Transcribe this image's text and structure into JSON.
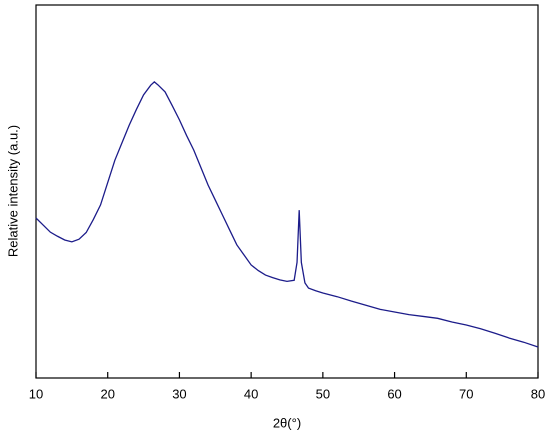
{
  "chart_data": {
    "type": "line",
    "x_label": "2θ(°)",
    "y_label": "Relative intensity (a.u.)",
    "color": "#1c1c8a",
    "x": [
      10,
      11,
      12,
      13,
      14,
      15,
      16,
      17,
      18,
      19,
      20,
      21,
      22,
      23,
      24,
      25,
      26,
      26.5,
      27,
      28,
      29,
      30,
      31,
      32,
      33,
      34,
      35,
      36,
      37,
      38,
      39,
      40,
      41,
      42,
      43,
      44,
      45,
      46,
      46.4,
      46.7,
      47,
      47.5,
      48,
      49,
      50,
      52,
      54,
      56,
      58,
      60,
      62,
      64,
      66,
      68,
      70,
      72,
      74,
      76,
      78,
      80
    ],
    "y": [
      42.9,
      41,
      39.1,
      38,
      37,
      36.5,
      37.2,
      39,
      42.5,
      46.4,
      52.4,
      58.4,
      63.1,
      67.8,
      72,
      75.9,
      78.5,
      79.4,
      78.6,
      76.7,
      73,
      69.2,
      65,
      61.1,
      56.4,
      51.7,
      47.7,
      43.7,
      39.7,
      35.7,
      33,
      30.3,
      28.8,
      27.6,
      26.9,
      26.3,
      25.9,
      26.2,
      31,
      45,
      31,
      25.5,
      24.1,
      23.4,
      22.8,
      21.8,
      20.6,
      19.5,
      18.4,
      17.7,
      17,
      16.5,
      16,
      15,
      14.2,
      13.2,
      12,
      10.7,
      9.6,
      8.3
    ],
    "xlim": [
      10,
      80
    ],
    "xticks": [
      10,
      20,
      30,
      40,
      50,
      60,
      70,
      80
    ],
    "ylim": [
      0,
      100
    ]
  }
}
